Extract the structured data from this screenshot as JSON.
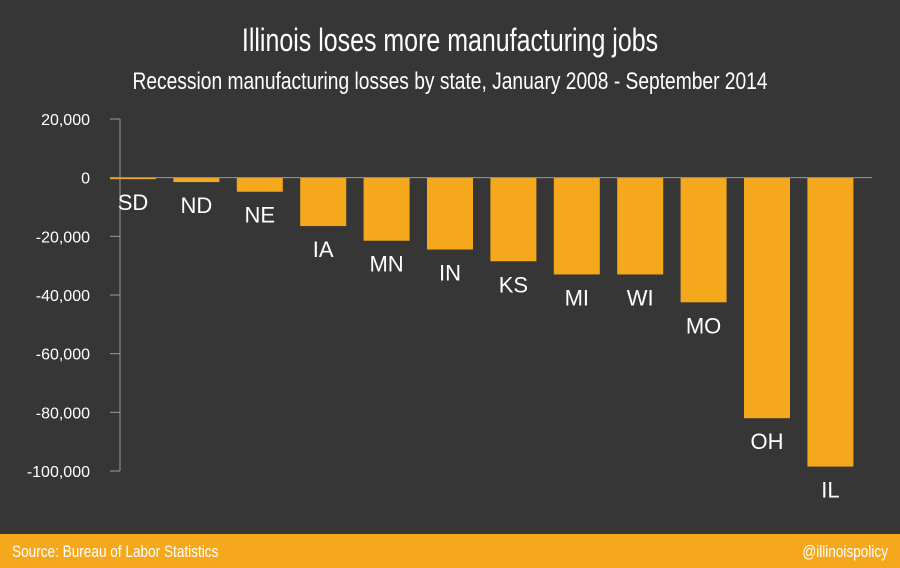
{
  "header": {
    "title": "Illinois loses more manufacturing jobs",
    "subtitle": "Recession manufacturing losses by state, January 2008 - September 2014"
  },
  "footer": {
    "source": "Source: Bureau of Labor Statistics",
    "handle": "@illinoispolicy"
  },
  "colors": {
    "background": "#363636",
    "bar": "#f5a81c",
    "text": "#ffffff",
    "axis": "#9a9a9a",
    "footer": "#f5a81c"
  },
  "chart_data": {
    "type": "bar",
    "title": "Illinois loses more manufacturing jobs",
    "subtitle": "Recession manufacturing losses by state, January 2008 - September 2014",
    "categories": [
      "SD",
      "ND",
      "NE",
      "IA",
      "MN",
      "IN",
      "KS",
      "MI",
      "WI",
      "MO",
      "OH",
      "IL"
    ],
    "values": [
      -500,
      -1500,
      -4800,
      -16500,
      -21500,
      -24500,
      -28500,
      -33000,
      -33000,
      -42500,
      -82000,
      -98500
    ],
    "ylim": [
      -100000,
      20000
    ],
    "yticks": [
      20000,
      0,
      -20000,
      -40000,
      -60000,
      -80000,
      -100000
    ],
    "ytick_labels": [
      "20,000",
      "0",
      "-20,000",
      "-40,000",
      "-60,000",
      "-80,000",
      "-100,000"
    ],
    "xlabel": "",
    "ylabel": "",
    "grid": false,
    "legend": "none"
  }
}
